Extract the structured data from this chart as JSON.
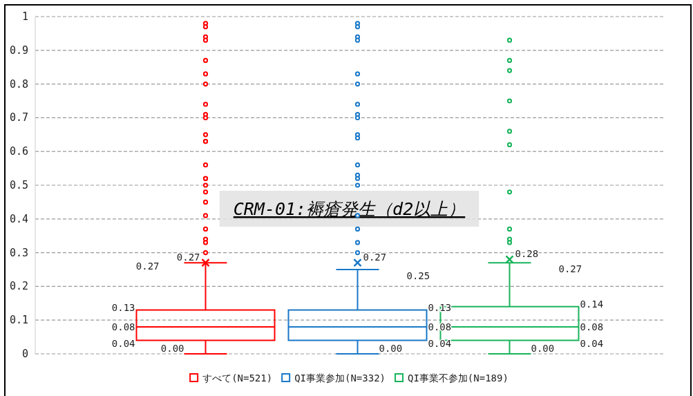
{
  "chart_data": {
    "type": "box",
    "title": "CRM-01:褥瘡発生（d2以上）",
    "categories": [
      null
    ],
    "ylim": [
      0,
      1
    ],
    "yticks": [
      0,
      0.1,
      0.2,
      0.3,
      0.4,
      0.5,
      0.6,
      0.7,
      0.8,
      0.9,
      1
    ],
    "grid": "y",
    "legend": "bottom",
    "marker": "circle",
    "series": [
      {
        "name": "すべて(N=521)",
        "color": "#ff0000",
        "value_labels": [
          [
            "0.00",
            "0.04",
            "0.08",
            "0.13",
            "0.27",
            "0.27"
          ]
        ],
        "boxes": [
          {
            "low": 0.0,
            "q1": 0.04,
            "median": 0.08,
            "q3": 0.13,
            "high": 0.27,
            "mean": 0.27,
            "outliers": [
              0.98,
              0.97,
              0.94,
              0.93,
              0.87,
              0.83,
              0.8,
              0.74,
              0.71,
              0.7,
              0.65,
              0.63,
              0.63,
              0.56,
              0.52,
              0.52,
              0.5,
              0.48,
              0.45,
              0.41,
              0.37,
              0.34,
              0.33,
              0.3
            ]
          }
        ]
      },
      {
        "name": "QI事業参加(N=332)",
        "color": "#1a78c8",
        "value_labels": [
          [
            "0.00",
            "0.04",
            "0.08",
            "0.13",
            "0.25",
            "0.27"
          ]
        ],
        "boxes": [
          {
            "low": 0.0,
            "q1": 0.04,
            "median": 0.08,
            "q3": 0.13,
            "high": 0.25,
            "mean": 0.27,
            "outliers": [
              0.98,
              0.97,
              0.94,
              0.93,
              0.83,
              0.8,
              0.74,
              0.71,
              0.7,
              0.65,
              0.64,
              0.56,
              0.53,
              0.52,
              0.5,
              0.41,
              0.37,
              0.33,
              0.3
            ]
          }
        ]
      },
      {
        "name": "QI事業不参加(N=189)",
        "color": "#17b45a",
        "value_labels": [
          [
            "0.00",
            "0.04",
            "0.08",
            "0.14",
            "0.27",
            "0.28"
          ]
        ],
        "boxes": [
          {
            "low": 0.0,
            "q1": 0.04,
            "median": 0.08,
            "q3": 0.14,
            "high": 0.27,
            "mean": 0.28,
            "outliers": [
              0.93,
              0.87,
              0.84,
              0.75,
              0.66,
              0.62,
              0.48,
              0.37,
              0.34,
              0.33
            ]
          }
        ]
      }
    ]
  }
}
